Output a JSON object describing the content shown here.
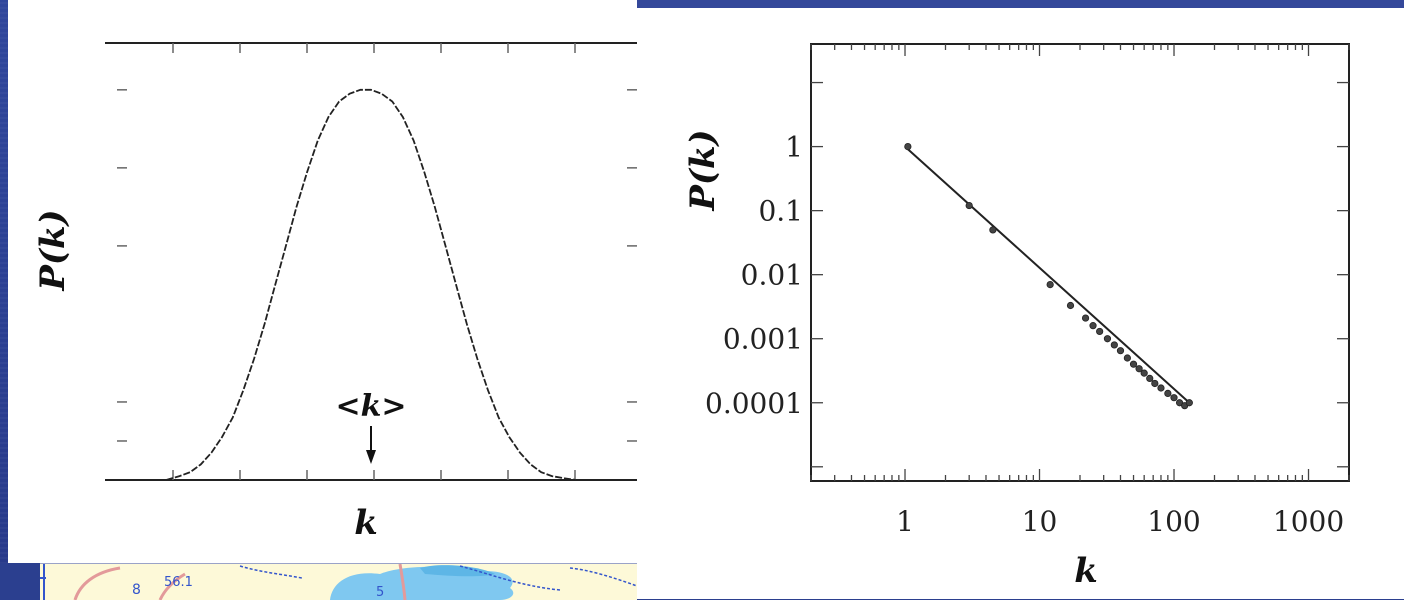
{
  "colors": {
    "slide_background": "#2b3f8f",
    "panel": "#ffffff",
    "line": "#222222",
    "map_water": "#7fc8f0",
    "map_land": "#fdf9d8",
    "map_road": "#e39a9a",
    "map_border": "#3355cc"
  },
  "chart_data": [
    {
      "type": "line",
      "title": "",
      "xlabel": "k",
      "ylabel": "P(k)",
      "x_ticks_labeled": false,
      "y_ticks_labeled": false,
      "annotation": "<k>",
      "annotation_arrow": "down",
      "line_style": "dashed",
      "series": [
        {
          "x": [
            0.23,
            0.28,
            0.32,
            0.36,
            0.4,
            0.44,
            0.48,
            0.52,
            0.56,
            0.6,
            0.64,
            0.68,
            0.72,
            0.76,
            0.8,
            0.84,
            0.88,
            0.92,
            0.96,
            1.0,
            1.04,
            1.08,
            1.12,
            1.16,
            1.2,
            1.24,
            1.28,
            1.32,
            1.36,
            1.4,
            1.44,
            1.48,
            1.52,
            1.56,
            1.6,
            1.64,
            1.68,
            1.72,
            1.77
          ],
          "y": [
            0.0,
            0.01,
            0.02,
            0.04,
            0.07,
            0.11,
            0.16,
            0.23,
            0.31,
            0.4,
            0.5,
            0.6,
            0.7,
            0.79,
            0.87,
            0.93,
            0.97,
            0.99,
            1.0,
            1.0,
            0.99,
            0.97,
            0.93,
            0.87,
            0.79,
            0.7,
            0.6,
            0.5,
            0.4,
            0.31,
            0.23,
            0.16,
            0.11,
            0.07,
            0.04,
            0.02,
            0.01,
            0.005,
            0.0
          ]
        }
      ],
      "xlim": [
        0,
        2.0
      ],
      "ylim": [
        0,
        1.12
      ]
    },
    {
      "type": "line",
      "title": "",
      "xlabel": "k",
      "ylabel": "P(k)",
      "x_scale": "log",
      "y_scale": "log",
      "x_ticks": [
        1,
        10,
        100,
        1000
      ],
      "x_tick_labels": [
        "1",
        "10",
        "100",
        "1000"
      ],
      "y_ticks": [
        1,
        0.1,
        0.01,
        0.001,
        0.0001
      ],
      "y_tick_labels": [
        "1",
        "0.1",
        "0.01",
        "0.001",
        "0.0001"
      ],
      "xlim": [
        0.2,
        2000
      ],
      "ylim": [
        6e-06,
        40
      ],
      "series": [
        {
          "x": [
            1,
            130
          ],
          "y": [
            1,
            0.0001
          ],
          "style": "line"
        },
        {
          "x": [
            1.05,
            3,
            4.5,
            12,
            17,
            22,
            25,
            28,
            32,
            36,
            40,
            45,
            50,
            55,
            60,
            66,
            72,
            80,
            90,
            100,
            110,
            120,
            130
          ],
          "y": [
            1.0,
            0.12,
            0.05,
            0.007,
            0.0033,
            0.0021,
            0.0016,
            0.0013,
            0.001,
            0.0008,
            0.00065,
            0.0005,
            0.0004,
            0.00034,
            0.00029,
            0.00024,
            0.0002,
            0.00017,
            0.00014,
            0.00012,
            0.0001,
            9e-05,
            0.0001
          ],
          "style": "markers"
        }
      ]
    }
  ],
  "map_snippet": {
    "labels": [
      "8",
      "56.1",
      "5"
    ]
  }
}
